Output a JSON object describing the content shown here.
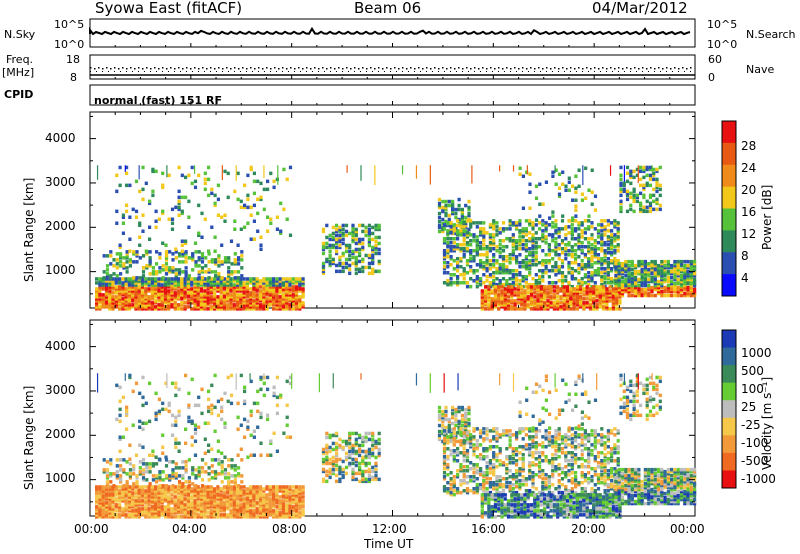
{
  "header": {
    "station": "Syowa East (fitACF)",
    "beam": "Beam 06",
    "date": "04/Mar/2012"
  },
  "top_panels": {
    "nsky_label": "N.Sky",
    "nsky_ticks": [
      "10^5",
      "10^0"
    ],
    "nsearch_label": "N.Search",
    "nsearch_ticks": [
      "10^5",
      "10^0"
    ],
    "freq_label": "Freq.",
    "freq_unit": "[MHz]",
    "freq_ticks": [
      "18",
      "8"
    ],
    "nave_label": "Nave",
    "nave_ticks": [
      "60",
      "0"
    ],
    "cpid_label": "CPID",
    "cpid_text": "normal (fast) 151 RF"
  },
  "chart_data": [
    {
      "type": "heatmap",
      "name": "power-panel",
      "ylabel": "Slant Range [km]",
      "xlabel": "",
      "ylim": [
        180,
        4600
      ],
      "yticks": [
        "1000",
        "2000",
        "3000",
        "4000"
      ],
      "colorbar_label": "Power [dB]",
      "colorbar_ticks": [
        "4",
        "8",
        "12",
        "16",
        "20",
        "24",
        "28"
      ],
      "colorbar_colors": [
        "#0a0aff",
        "#2a4fb0",
        "#2e8a5a",
        "#55c23a",
        "#f2c81a",
        "#f08a18",
        "#e85a14",
        "#e81010"
      ]
    },
    {
      "type": "heatmap",
      "name": "velocity-panel",
      "ylabel": "Slant Range [km]",
      "xlabel": "Time UT",
      "ylim": [
        180,
        4600
      ],
      "yticks": [
        "1000",
        "2000",
        "3000",
        "4000"
      ],
      "colorbar_label": "Velocity [m s⁻¹]",
      "colorbar_ticks": [
        "1000",
        "500",
        "100",
        "25",
        "-25",
        "-100",
        "-500",
        "-1000"
      ],
      "colorbar_colors": [
        "#1c3ab5",
        "#2f6a9a",
        "#3a8a5a",
        "#66cc33",
        "#bdbdbd",
        "#f5c84a",
        "#f29a3a",
        "#ef6a20",
        "#e81010"
      ]
    }
  ],
  "xaxis": {
    "ticks": [
      "00:00",
      "04:00",
      "08:00",
      "12:00",
      "16:00",
      "20:00",
      "00:00"
    ],
    "label": "Time UT"
  }
}
